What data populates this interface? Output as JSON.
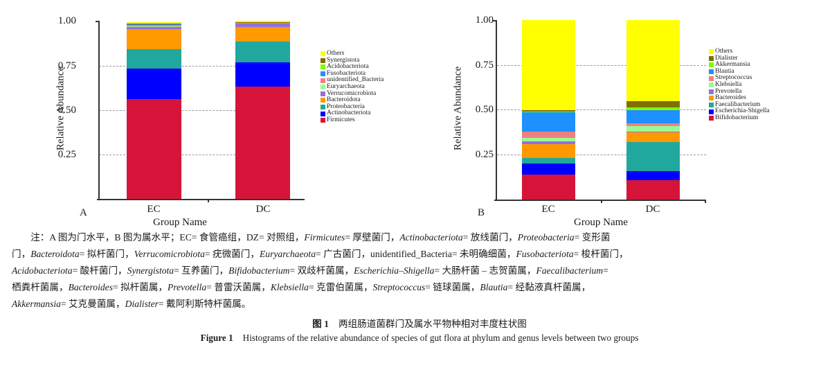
{
  "chart_data": [
    {
      "type": "bar",
      "stacked": true,
      "panel": "A",
      "title": "",
      "xlabel": "Group Name",
      "ylabel": "Relative Abundance",
      "ylim": [
        0,
        1
      ],
      "yticks": [
        "0.25",
        "0.50",
        "0.75",
        "1.00"
      ],
      "grid": "horizontal dashed",
      "legend_position": "right",
      "categories": [
        "EC",
        "DC"
      ],
      "series": [
        {
          "name": "Firmicutes",
          "color": "#D6143A",
          "values": [
            0.56,
            0.63
          ]
        },
        {
          "name": "Actinobacteriota",
          "color": "#0000FF",
          "values": [
            0.17,
            0.135
          ]
        },
        {
          "name": "Proteobacteria",
          "color": "#20A89E",
          "values": [
            0.11,
            0.118
          ]
        },
        {
          "name": "Bacteroidota",
          "color": "#FF9900",
          "values": [
            0.115,
            0.082
          ]
        },
        {
          "name": "Verrucomicrobiota",
          "color": "#9370DB",
          "values": [
            0.01,
            0.02
          ]
        },
        {
          "name": "Euryarchaeota",
          "color": "#98FB98",
          "values": [
            0.006,
            0.001
          ]
        },
        {
          "name": "unidentified_Bacteria",
          "color": "#F08080",
          "values": [
            0.005,
            0.002
          ]
        },
        {
          "name": "Fusobacteriota",
          "color": "#1E90FF",
          "values": [
            0.004,
            0.001
          ]
        },
        {
          "name": "Acidobacteriota",
          "color": "#7CFC00",
          "values": [
            0.002,
            0.001
          ]
        },
        {
          "name": "Synergistota",
          "color": "#7F7000",
          "values": [
            0.002,
            0.001
          ]
        },
        {
          "name": "Others",
          "color": "#FFFF00",
          "values": [
            0.01,
            0.009
          ]
        }
      ]
    },
    {
      "type": "bar",
      "stacked": true,
      "panel": "B",
      "title": "",
      "xlabel": "Group Name",
      "ylabel": "Relative Abundance",
      "ylim": [
        0,
        1
      ],
      "yticks": [
        "0.25",
        "0.50",
        "0.75",
        "1.00"
      ],
      "grid": "horizontal dashed",
      "legend_position": "right",
      "categories": [
        "EC",
        "DC"
      ],
      "series": [
        {
          "name": "Bifidobacterium",
          "color": "#D6143A",
          "values": [
            0.14,
            0.11
          ]
        },
        {
          "name": "Escherichia-Shigella",
          "color": "#0000FF",
          "values": [
            0.06,
            0.05
          ]
        },
        {
          "name": "Faecalibacterium",
          "color": "#20A89E",
          "values": [
            0.03,
            0.16
          ]
        },
        {
          "name": "Bacteroides",
          "color": "#FF9900",
          "values": [
            0.08,
            0.055
          ]
        },
        {
          "name": "Prevotella",
          "color": "#9370DB",
          "values": [
            0.015,
            0.005
          ]
        },
        {
          "name": "Klebsiella",
          "color": "#98FB98",
          "values": [
            0.02,
            0.03
          ]
        },
        {
          "name": "Streptococcus",
          "color": "#F08080",
          "values": [
            0.035,
            0.015
          ]
        },
        {
          "name": "Blautia",
          "color": "#1E90FF",
          "values": [
            0.105,
            0.075
          ]
        },
        {
          "name": "Akkermansia",
          "color": "#7CFC00",
          "values": [
            0.005,
            0.015
          ]
        },
        {
          "name": "Dialister",
          "color": "#7F7000",
          "values": [
            0.01,
            0.035
          ]
        },
        {
          "name": "Others",
          "color": "#FFFF00",
          "values": [
            0.5,
            0.45
          ]
        }
      ]
    }
  ],
  "panels": {
    "A": {
      "letter": "A",
      "xlabel": "Group Name",
      "ylabel": "Relative Abundance",
      "cat0": "EC",
      "cat1": "DC",
      "y100": "1.00",
      "y075": "0.75",
      "y050": "0.50",
      "y025": "0.25"
    },
    "B": {
      "letter": "B",
      "xlabel": "Group Name",
      "ylabel": "Relative Abundance",
      "cat0": "EC",
      "cat1": "DC",
      "y100": "1.00",
      "y075": "0.75",
      "y050": "0.50",
      "y025": "0.25"
    }
  },
  "caption": {
    "lines": [
      [
        {
          "t": "注：A 图为门水平，B 图为属水平；EC= 食管癌组，DZ= 对照组，"
        },
        {
          "t": "Firmicutes",
          "i": true
        },
        {
          "t": "= 厚壁菌门，"
        },
        {
          "t": "Actinobacteriota",
          "i": true
        },
        {
          "t": "= 放线菌门，"
        },
        {
          "t": "Proteobacteria",
          "i": true
        },
        {
          "t": "= 变形菌"
        }
      ],
      [
        {
          "t": "门，"
        },
        {
          "t": "Bacteroidota",
          "i": true
        },
        {
          "t": "= 拟杆菌门，"
        },
        {
          "t": "Verrucomicrobiota",
          "i": true
        },
        {
          "t": "= 疣微菌门，"
        },
        {
          "t": "Euryarchaeota",
          "i": true
        },
        {
          "t": "= 广古菌门，unidentified_Bacteria= 未明确细菌，"
        },
        {
          "t": "Fusobacteriota",
          "i": true
        },
        {
          "t": "= 梭杆菌门，"
        }
      ],
      [
        {
          "t": "Acidobacteriota",
          "i": true
        },
        {
          "t": "= 酸杆菌门，"
        },
        {
          "t": "Synergistota",
          "i": true
        },
        {
          "t": "= 互养菌门，"
        },
        {
          "t": "Bifidobacterium",
          "i": true
        },
        {
          "t": "= 双歧杆菌属，"
        },
        {
          "t": "Escherichia–Shigella",
          "i": true
        },
        {
          "t": "= 大肠杆菌 – 志贺菌属，"
        },
        {
          "t": "Faecalibacterium",
          "i": true
        },
        {
          "t": "="
        }
      ],
      [
        {
          "t": "栖粪杆菌属，"
        },
        {
          "t": "Bacteroides",
          "i": true
        },
        {
          "t": "= 拟杆菌属，"
        },
        {
          "t": "Prevotella",
          "i": true
        },
        {
          "t": "= 普雷沃菌属，"
        },
        {
          "t": "Klebsiella",
          "i": true
        },
        {
          "t": "= 克雷伯菌属，"
        },
        {
          "t": "Streptococcus",
          "i": true
        },
        {
          "t": "= 链球菌属，"
        },
        {
          "t": "Blautia",
          "i": true
        },
        {
          "t": "= 经黏液真杆菌属，"
        }
      ],
      [
        {
          "t": "Akkermansia",
          "i": true
        },
        {
          "t": "= 艾克曼菌属，"
        },
        {
          "t": "Dialister",
          "i": true
        },
        {
          "t": "= 戴阿利斯特杆菌属。"
        }
      ]
    ]
  },
  "figure": {
    "cn_label": "图 1",
    "cn_title": "两组肠道菌群门及属水平物种相对丰度柱状图",
    "en_label": "Figure 1",
    "en_title": "Histograms of the relative abundance of species of gut flora at phylum and genus levels between two groups"
  }
}
